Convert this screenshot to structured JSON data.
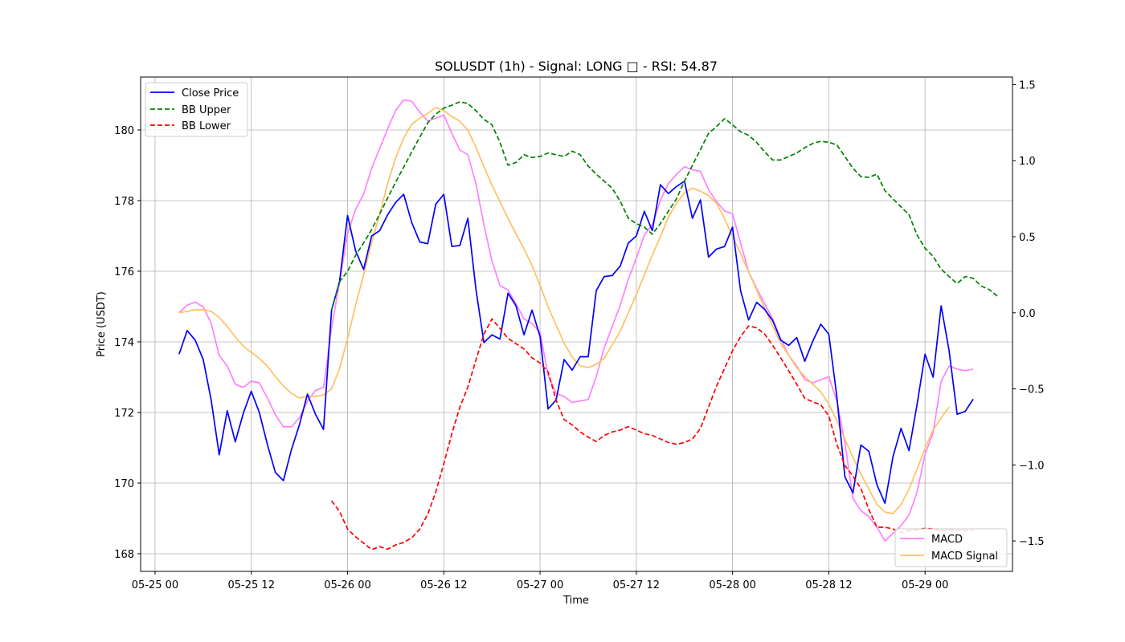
{
  "chart_data": {
    "type": "line",
    "title": "SOLUSDT (1h) - Signal: LONG □ - RSI: 54.87",
    "xlabel": "Time",
    "ylabel": "Price (USDT)",
    "grid": true,
    "x_ticks": [
      "05-25 00",
      "05-25 12",
      "05-26 00",
      "05-26 12",
      "05-27 00",
      "05-27 12",
      "05-28 00",
      "05-28 12",
      "05-29 00"
    ],
    "x_hours_range": [
      -1.8,
      106.9
    ],
    "ylim_left": [
      167.5,
      181.5
    ],
    "yticks_left": [
      168,
      170,
      172,
      174,
      176,
      178,
      180
    ],
    "ylim_right": [
      -1.7,
      1.55
    ],
    "yticks_right": [
      -1.5,
      -1.0,
      -0.5,
      0.0,
      0.5,
      1.0,
      1.5
    ],
    "yticks_right_labels": [
      "−1.5",
      "−1.0",
      "−0.5",
      "0.0",
      "0.5",
      "1.0",
      "1.5"
    ],
    "legend_left": {
      "placement": "upper-left",
      "entries": [
        "Close Price",
        "BB Upper",
        "BB Lower"
      ]
    },
    "legend_right": {
      "placement": "lower-right",
      "entries": [
        "MACD",
        "MACD Signal"
      ]
    },
    "series": [
      {
        "name": "Close Price",
        "axis": "left",
        "color": "#0000ff",
        "style": "solid",
        "x_start": 3,
        "values": [
          173.65,
          174.32,
          174.05,
          173.5,
          172.35,
          170.8,
          172.05,
          171.17,
          171.98,
          172.6,
          172.0,
          171.1,
          170.3,
          170.07,
          170.95,
          171.65,
          172.52,
          171.95,
          171.52,
          174.9,
          175.7,
          177.58,
          176.58,
          176.05,
          177.0,
          177.15,
          177.6,
          177.95,
          178.18,
          177.38,
          176.83,
          176.78,
          177.9,
          178.18,
          176.7,
          176.73,
          177.5,
          175.5,
          173.98,
          174.2,
          174.08,
          175.38,
          175.02,
          174.2,
          174.9,
          174.15,
          172.1,
          172.35,
          173.5,
          173.2,
          173.58,
          173.58,
          175.45,
          175.85,
          175.88,
          176.15,
          176.8,
          177.0,
          177.7,
          177.15,
          178.45,
          178.2,
          178.4,
          178.55,
          177.5,
          178.02,
          176.4,
          176.63,
          176.7,
          177.25,
          175.45,
          174.62,
          175.12,
          174.92,
          174.6,
          174.05,
          173.9,
          174.12,
          173.45,
          174.02,
          174.5,
          174.22,
          172.45,
          170.18,
          169.72,
          171.08,
          170.9,
          169.95,
          169.43,
          170.75,
          171.55,
          170.92,
          172.22,
          173.65,
          173.0,
          175.02,
          173.75,
          171.95,
          172.03,
          172.38
        ]
      },
      {
        "name": "BB Upper",
        "axis": "left",
        "color": "#008000",
        "style": "dashed",
        "x_start": 22,
        "values": [
          174.9,
          175.7,
          176.0,
          176.45,
          176.8,
          177.18,
          177.62,
          178.08,
          178.52,
          178.95,
          179.38,
          179.8,
          180.2,
          180.45,
          180.62,
          180.7,
          180.8,
          180.75,
          180.55,
          180.3,
          180.15,
          179.65,
          179.0,
          179.08,
          179.3,
          179.22,
          179.25,
          179.35,
          179.3,
          179.25,
          179.4,
          179.3,
          178.98,
          178.75,
          178.55,
          178.35,
          177.98,
          177.5,
          177.35,
          177.25,
          177.05,
          177.35,
          177.7,
          178.05,
          178.55,
          179.0,
          179.45,
          179.9,
          180.1,
          180.32,
          180.15,
          179.95,
          179.85,
          179.65,
          179.38,
          179.15,
          179.15,
          179.25,
          179.35,
          179.5,
          179.62,
          179.68,
          179.65,
          179.58,
          179.25,
          178.92,
          178.68,
          178.66,
          178.75,
          178.28,
          178.05,
          177.82,
          177.6,
          177.03,
          176.65,
          176.42,
          176.06,
          175.85,
          175.65,
          175.85,
          175.8,
          175.58,
          175.48,
          175.3
        ]
      },
      {
        "name": "BB Lower",
        "axis": "left",
        "color": "#ff0000",
        "style": "dashed",
        "x_start": 22,
        "values": [
          169.5,
          169.2,
          168.7,
          168.48,
          168.3,
          168.12,
          168.2,
          168.13,
          168.25,
          168.32,
          168.45,
          168.7,
          169.12,
          169.75,
          170.55,
          171.4,
          172.15,
          172.72,
          173.48,
          174.22,
          174.65,
          174.38,
          174.1,
          173.95,
          173.8,
          173.55,
          173.4,
          173.15,
          172.35,
          171.8,
          171.65,
          171.45,
          171.3,
          171.18,
          171.35,
          171.45,
          171.5,
          171.6,
          171.5,
          171.4,
          171.35,
          171.25,
          171.15,
          171.1,
          171.15,
          171.25,
          171.55,
          172.15,
          172.75,
          173.25,
          173.75,
          174.15,
          174.45,
          174.4,
          174.22,
          173.9,
          173.55,
          173.18,
          172.8,
          172.4,
          172.3,
          172.22,
          171.9,
          171.1,
          170.5,
          170.2,
          169.85,
          169.25,
          168.75,
          168.75,
          168.7,
          168.6,
          168.65,
          168.68,
          168.72,
          168.7,
          168.65,
          168.68,
          168.66,
          168.65,
          168.67
        ]
      },
      {
        "name": "MACD",
        "axis": "right",
        "color": "#ff80ff",
        "style": "solid",
        "x_start": 3,
        "values": [
          0.0,
          0.05,
          0.07,
          0.04,
          -0.07,
          -0.28,
          -0.35,
          -0.47,
          -0.49,
          -0.45,
          -0.46,
          -0.56,
          -0.67,
          -0.75,
          -0.75,
          -0.69,
          -0.58,
          -0.51,
          -0.49,
          -0.1,
          0.2,
          0.52,
          0.68,
          0.78,
          0.95,
          1.08,
          1.21,
          1.33,
          1.4,
          1.39,
          1.32,
          1.26,
          1.28,
          1.3,
          1.18,
          1.07,
          1.04,
          0.85,
          0.58,
          0.34,
          0.18,
          0.15,
          0.06,
          -0.04,
          -0.07,
          -0.13,
          -0.41,
          -0.53,
          -0.55,
          -0.59,
          -0.58,
          -0.57,
          -0.42,
          -0.23,
          -0.09,
          0.05,
          0.22,
          0.36,
          0.51,
          0.58,
          0.74,
          0.85,
          0.91,
          0.96,
          0.94,
          0.93,
          0.81,
          0.73,
          0.67,
          0.65,
          0.46,
          0.27,
          0.16,
          0.06,
          -0.04,
          -0.17,
          -0.28,
          -0.35,
          -0.44,
          -0.46,
          -0.44,
          -0.42,
          -0.58,
          -0.85,
          -1.22,
          -1.3,
          -1.34,
          -1.41,
          -1.5,
          -1.45,
          -1.4,
          -1.33,
          -1.18,
          -0.93,
          -0.79,
          -0.45,
          -0.35,
          -0.37,
          -0.38,
          -0.37
        ]
      },
      {
        "name": "MACD Signal",
        "axis": "right",
        "color": "#ffc060",
        "style": "solid",
        "x_start": 3,
        "values": [
          0.0,
          0.01,
          0.02,
          0.02,
          0.01,
          -0.03,
          -0.09,
          -0.16,
          -0.22,
          -0.26,
          -0.3,
          -0.35,
          -0.42,
          -0.48,
          -0.53,
          -0.56,
          -0.55,
          -0.55,
          -0.54,
          -0.5,
          -0.37,
          -0.17,
          0.05,
          0.25,
          0.46,
          0.65,
          0.85,
          1.02,
          1.15,
          1.24,
          1.28,
          1.31,
          1.35,
          1.33,
          1.29,
          1.26,
          1.2,
          1.09,
          0.96,
          0.84,
          0.73,
          0.62,
          0.52,
          0.42,
          0.31,
          0.18,
          0.04,
          -0.08,
          -0.2,
          -0.29,
          -0.35,
          -0.36,
          -0.34,
          -0.3,
          -0.21,
          -0.12,
          0.0,
          0.12,
          0.25,
          0.38,
          0.5,
          0.63,
          0.72,
          0.79,
          0.82,
          0.8,
          0.77,
          0.72,
          0.62,
          0.5,
          0.39,
          0.27,
          0.15,
          0.03,
          -0.09,
          -0.2,
          -0.28,
          -0.36,
          -0.42,
          -0.47,
          -0.52,
          -0.6,
          -0.71,
          -0.83,
          -0.95,
          -1.06,
          -1.16,
          -1.26,
          -1.31,
          -1.32,
          -1.26,
          -1.16,
          -1.03,
          -0.89,
          -0.77,
          -0.69,
          -0.62
        ]
      }
    ]
  }
}
